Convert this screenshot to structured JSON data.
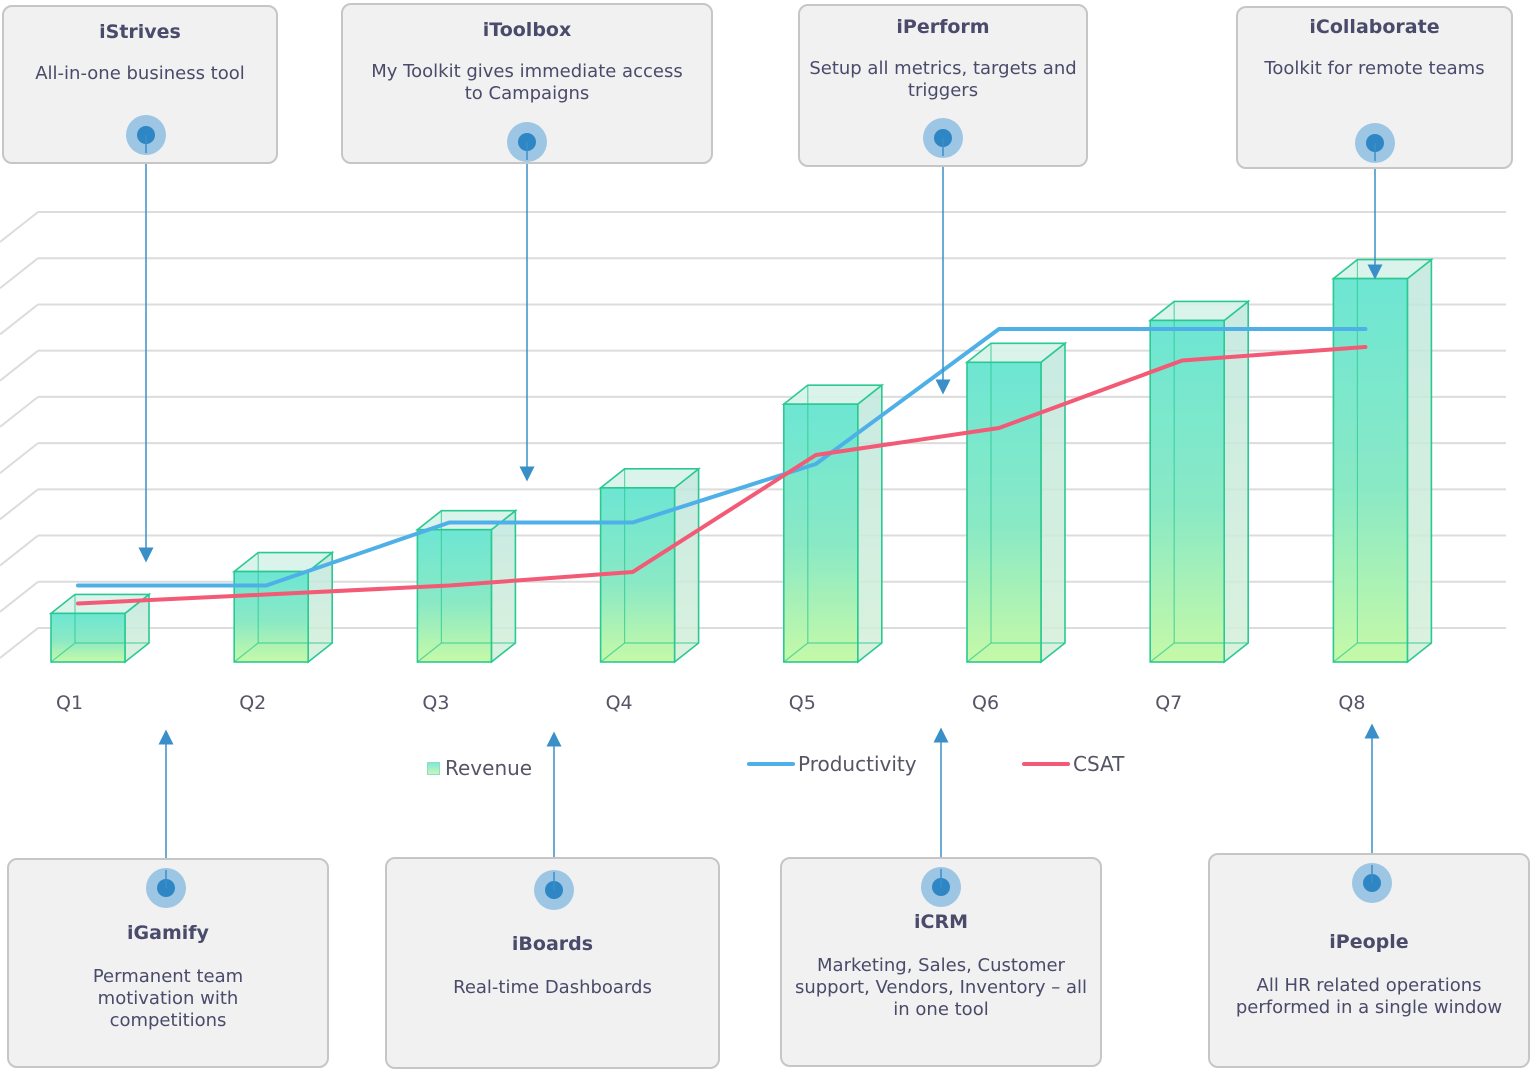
{
  "chart_data": {
    "type": "bar",
    "categories": [
      "Q1",
      "Q2",
      "Q3",
      "Q4",
      "Q5",
      "Q6",
      "Q7",
      "Q8"
    ],
    "ylim": [
      0,
      10
    ],
    "grid": true,
    "legend": "bottom",
    "series": [
      {
        "name": "Revenue",
        "kind": "bar",
        "values": [
          1.0,
          2.0,
          3.0,
          4.0,
          6.0,
          7.0,
          8.0,
          9.0
        ]
      },
      {
        "name": "Productivity",
        "kind": "line",
        "values": [
          1.7,
          1.7,
          3.1,
          3.1,
          4.4,
          7.4,
          7.4,
          7.4
        ]
      },
      {
        "name": "CSAT",
        "kind": "line",
        "values": [
          1.3,
          1.5,
          1.7,
          2.0,
          4.6,
          5.2,
          6.7,
          7.0
        ]
      }
    ],
    "colors": {
      "Revenue_top": "#6de6d3",
      "Revenue_bottom": "#c6f9a8",
      "Revenue_edge": "#2ac991",
      "Productivity": "#4fb0e8",
      "CSAT": "#f25a76"
    }
  },
  "callouts_top": [
    {
      "title": "iStrives",
      "desc": "All-in-one business tool"
    },
    {
      "title": "iToolbox",
      "desc": "My Toolkit gives immediate access to Campaigns"
    },
    {
      "title": "iPerform",
      "desc": "Setup all metrics, targets and triggers"
    },
    {
      "title": "iCollaborate",
      "desc": "Toolkit for remote teams"
    }
  ],
  "callouts_bottom": [
    {
      "title": "iGamify",
      "desc": "Permanent team motivation with competitions"
    },
    {
      "title": "iBoards",
      "desc": "Real-time Dashboards"
    },
    {
      "title": "iCRM",
      "desc": "Marketing, Sales, Customer support, Vendors, Inventory – all in one tool"
    },
    {
      "title": "iPeople",
      "desc": "All HR related operations performed in a single window"
    }
  ],
  "legend": {
    "revenue": "Revenue",
    "productivity": "Productivity",
    "csat": "CSAT"
  },
  "marker_color": "#2f86c4",
  "connector_color": "#3b8fc8"
}
